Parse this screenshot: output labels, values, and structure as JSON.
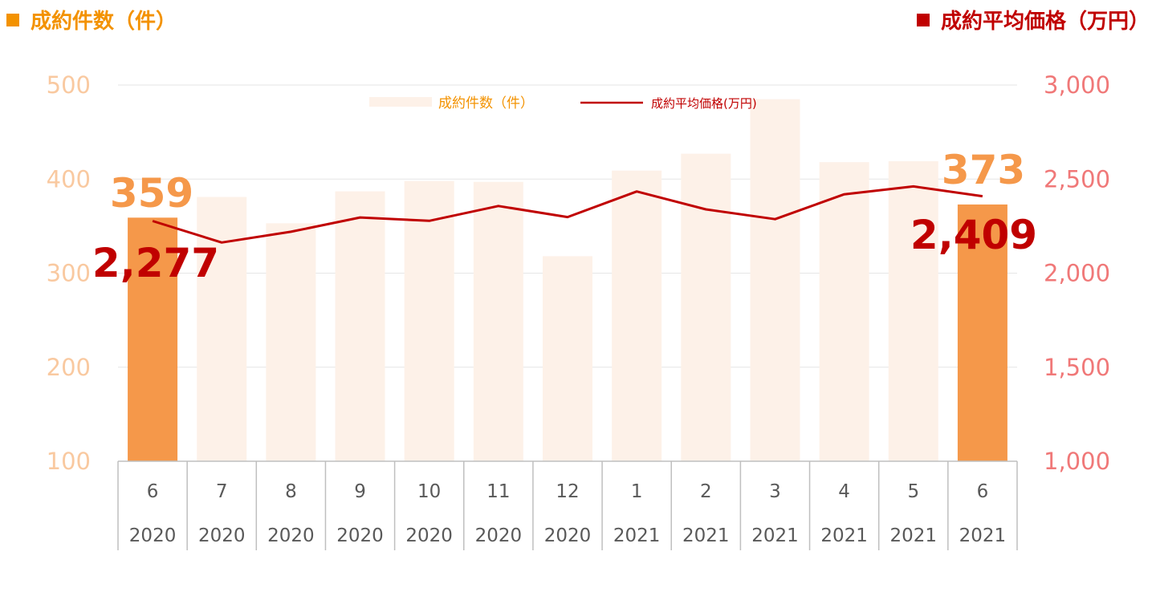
{
  "headers": {
    "left": "成約件数（件）",
    "right": "成約平均価格（万円）"
  },
  "colors": {
    "bar_highlight": "#f5984a",
    "bar_muted": "#fdf1e8",
    "line": "#c00000",
    "left_axis": "#f9c9a0",
    "right_axis": "#f07878",
    "grid": "#e6e6e6",
    "axis_text": "#595959"
  },
  "chart_data": {
    "type": "bar",
    "categories": [
      {
        "month": "6",
        "year": "2020"
      },
      {
        "month": "7",
        "year": "2020"
      },
      {
        "month": "8",
        "year": "2020"
      },
      {
        "month": "9",
        "year": "2020"
      },
      {
        "month": "10",
        "year": "2020"
      },
      {
        "month": "11",
        "year": "2020"
      },
      {
        "month": "12",
        "year": "2020"
      },
      {
        "month": "1",
        "year": "2021"
      },
      {
        "month": "2",
        "year": "2021"
      },
      {
        "month": "3",
        "year": "2021"
      },
      {
        "month": "4",
        "year": "2021"
      },
      {
        "month": "5",
        "year": "2021"
      },
      {
        "month": "6",
        "year": "2021"
      }
    ],
    "series": [
      {
        "name": "成約件数（件）",
        "type": "bar",
        "axis": "left",
        "values": [
          359,
          381,
          353,
          387,
          398,
          397,
          318,
          409,
          427,
          485,
          418,
          419,
          373
        ],
        "highlight": [
          true,
          false,
          false,
          false,
          false,
          false,
          false,
          false,
          false,
          false,
          false,
          false,
          true
        ]
      },
      {
        "name": "成約平均価格(万円)",
        "type": "line",
        "axis": "right",
        "values": [
          2277,
          2163,
          2220,
          2296,
          2278,
          2357,
          2298,
          2434,
          2339,
          2287,
          2419,
          2461,
          2409
        ]
      }
    ],
    "left_axis": {
      "min": 100,
      "max": 500,
      "ticks": [
        "100",
        "200",
        "300",
        "400",
        "500"
      ]
    },
    "right_axis": {
      "min": 1000,
      "max": 3000,
      "ticks": [
        "1,000",
        "1,500",
        "2,000",
        "2,500",
        "3,000"
      ]
    },
    "annotations": {
      "first_bar": "359",
      "last_bar": "373",
      "first_line": "2,277",
      "last_line": "2,409"
    },
    "legend": {
      "placement": "top-center",
      "bar_label": "成約件数（件）",
      "line_label": "成約平均価格(万円)"
    },
    "grid": true
  }
}
